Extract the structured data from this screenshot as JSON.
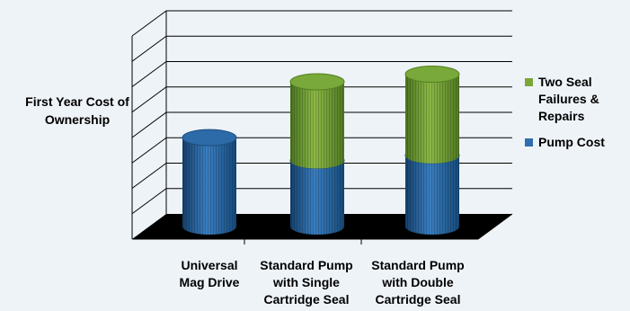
{
  "chart_data": {
    "type": "bar",
    "stacked": true,
    "three_d": true,
    "title": "",
    "ylabel": "First Year Cost of Ownership",
    "xlabel": "",
    "categories": [
      "Universal Mag Drive",
      "Standard Pump with Single Cartridge Seal",
      "Standard Pump with Double Cartridge Seal"
    ],
    "category_lines": [
      [
        "Universal",
        "Mag Drive"
      ],
      [
        "Standard Pump",
        "with Single",
        "Cartridge Seal"
      ],
      [
        "Standard Pump",
        "with Double",
        "Cartridge Seal"
      ]
    ],
    "ylim": [
      0,
      8
    ],
    "y_tick_labels_shown": false,
    "series": [
      {
        "name": "Pump Cost",
        "values": [
          3.5,
          2.6,
          2.8
        ],
        "color": "#2f6fad"
      },
      {
        "name": "Two Seal Failures & Repairs",
        "values": [
          0,
          3.1,
          3.2
        ],
        "color": "#7aa63a"
      }
    ],
    "legend": {
      "position": "right",
      "entries": [
        {
          "lines": [
            "Two Seal",
            "Failures &",
            "Repairs"
          ],
          "color": "#7aa63a"
        },
        {
          "lines": [
            "Pump Cost"
          ],
          "color": "#2f6fad"
        }
      ]
    },
    "grid": true,
    "floor_color": "#000000"
  }
}
